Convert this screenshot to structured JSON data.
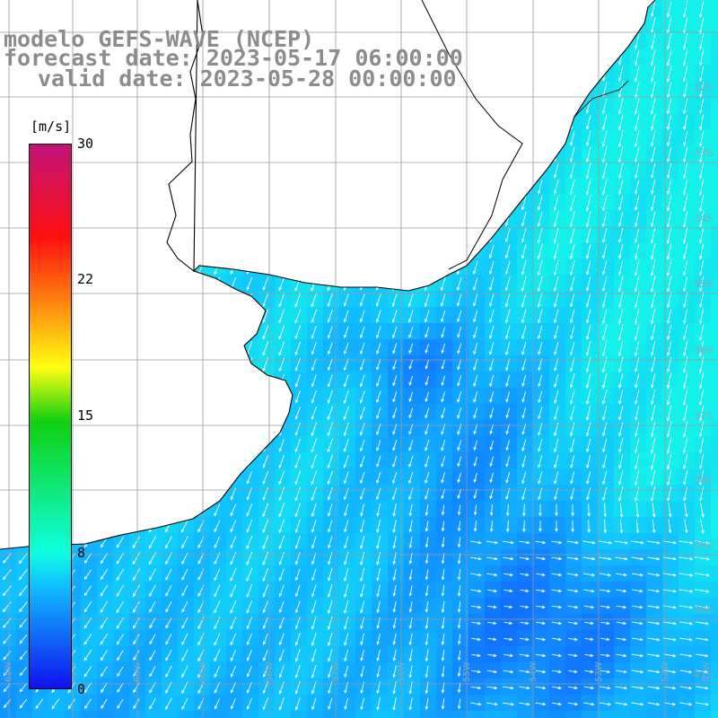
{
  "header": {
    "line1": "modelo GEFS-WAVE (NCEP)",
    "line2": "forecast date: 2023-05-17 06:00:00",
    "line3": "valid date: 2023-05-28 00:00:00"
  },
  "colorbar": {
    "unit": "[m/s]",
    "ticks": [
      {
        "label": "30",
        "value": 30
      },
      {
        "label": "22",
        "value": 22
      },
      {
        "label": "15",
        "value": 15
      },
      {
        "label": "8",
        "value": 8
      },
      {
        "label": "0",
        "value": 0
      }
    ],
    "colors": [
      "#c0137a",
      "#ff1010",
      "#ff7a10",
      "#ffff10",
      "#10d010",
      "#10ffe0",
      "#10c0ff",
      "#1010f0"
    ]
  },
  "map": {
    "land_color": "#ffffff",
    "coastline_color": "#000000",
    "grid_color": "#9a9a9a",
    "field": "wind speed and direction (arrows)",
    "arrow_color": "#ffffff",
    "lat_labels": [
      "32S",
      "33S",
      "34S",
      "35S",
      "36S",
      "37S",
      "38S",
      "39S",
      "40S",
      "41S"
    ],
    "lon_labels": [
      "62W",
      "61W",
      "60W",
      "59W",
      "58W",
      "57W",
      "56W",
      "55W",
      "54W",
      "53W",
      "52W",
      "51W"
    ]
  }
}
